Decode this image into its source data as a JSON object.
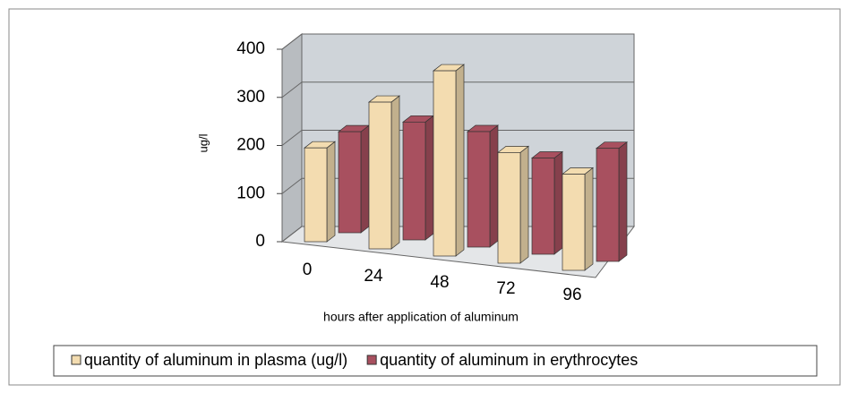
{
  "chart_data": {
    "type": "bar3d",
    "categories": [
      "0",
      "24",
      "48",
      "72",
      "96"
    ],
    "series": [
      {
        "name": "quantity of aluminum in plasma (ug/l)",
        "color": "#f3dcb0",
        "values": [
          195,
          305,
          385,
          230,
          200
        ]
      },
      {
        "name": "quantity of aluminum in erythrocytes",
        "color": "#a8505f",
        "values": [
          210,
          245,
          240,
          200,
          235
        ]
      }
    ],
    "ylim": [
      0,
      400
    ],
    "yticks": [
      0,
      100,
      200,
      300,
      400
    ],
    "y_label": "ug/l",
    "x_label": "hours after application of aluminum",
    "grid": true,
    "legend": "bottom"
  }
}
